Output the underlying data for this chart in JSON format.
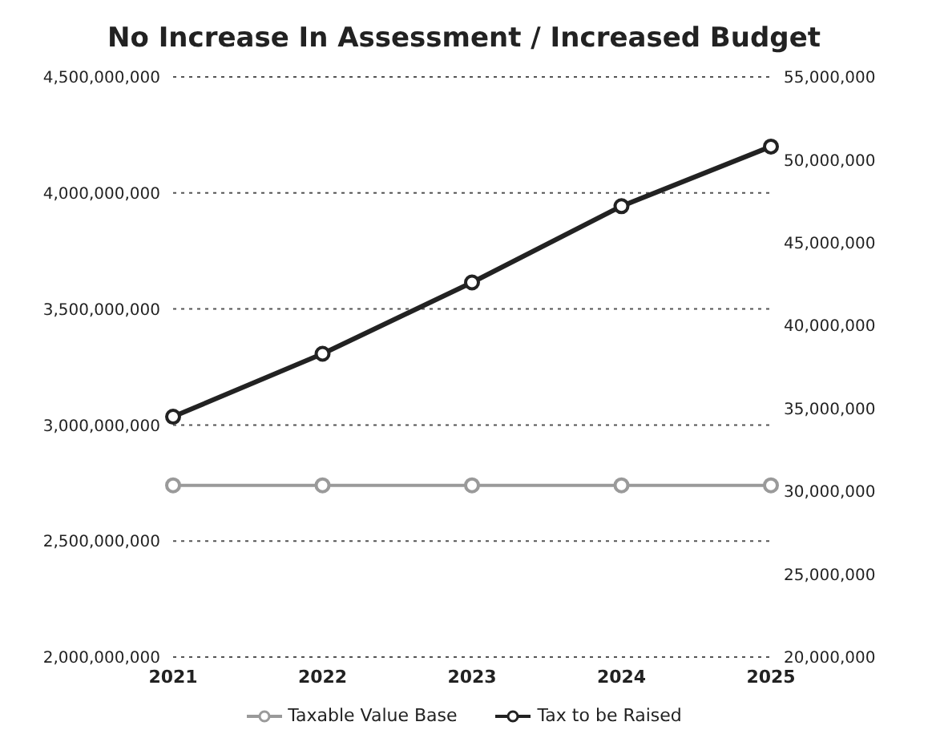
{
  "chart_data": {
    "type": "line",
    "title": "No Increase In Assessment / Increased Budget",
    "categories": [
      "2021",
      "2022",
      "2023",
      "2024",
      "2025"
    ],
    "series": [
      {
        "name": "Taxable Value Base",
        "color": "#9a9a9a",
        "values": [
          2740000000,
          2740000000,
          2740000000,
          2740000000,
          2740000000
        ]
      },
      {
        "name": "Tax to be Raised",
        "color": "#222222",
        "axis": "y2",
        "values": [
          34500000,
          38300000,
          42600000,
          47200000,
          50800000
        ]
      }
    ],
    "ylim": [
      2000000000,
      4500000000
    ],
    "yticks": [
      {
        "value": 2000000000,
        "label": "2,000,000,000"
      },
      {
        "value": 2500000000,
        "label": "2,500,000,000"
      },
      {
        "value": 3000000000,
        "label": "3,000,000,000"
      },
      {
        "value": 3500000000,
        "label": "3,500,000,000"
      },
      {
        "value": 4000000000,
        "label": "4,000,000,000"
      },
      {
        "value": 4500000000,
        "label": "4,500,000,000"
      }
    ],
    "y2lim": [
      20000000,
      55000000
    ],
    "y2ticks": [
      {
        "value": 20000000,
        "label": "20,000,000"
      },
      {
        "value": 25000000,
        "label": "25,000,000"
      },
      {
        "value": 30000000,
        "label": "30,000,000"
      },
      {
        "value": 35000000,
        "label": "35,000,000"
      },
      {
        "value": 40000000,
        "label": "40,000,000"
      },
      {
        "value": 45000000,
        "label": "45,000,000"
      },
      {
        "value": 50000000,
        "label": "50,000,000"
      },
      {
        "value": 55000000,
        "label": "55,000,000"
      }
    ],
    "grid": "y",
    "legend": "bottom",
    "marker": "circle",
    "line_style": "solid"
  }
}
